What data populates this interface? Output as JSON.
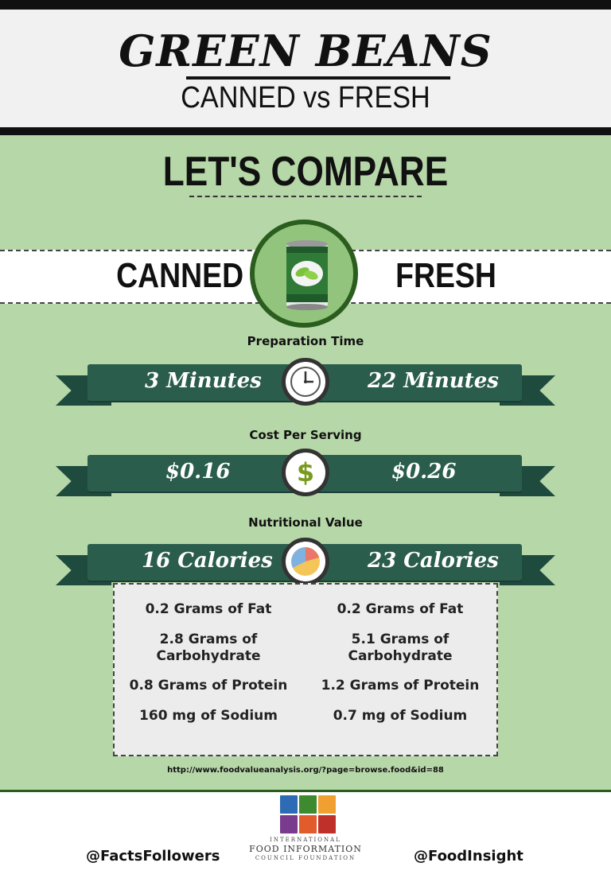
{
  "header": {
    "title": "GREEN BEANS",
    "subtitle": "CANNED vs FRESH"
  },
  "compare": {
    "title": "LET'S COMPARE",
    "left_label": "CANNED",
    "right_label": "FRESH"
  },
  "sections": {
    "prep": {
      "label": "Preparation Time",
      "canned": "3 Minutes",
      "fresh": "22 Minutes",
      "icon": "clock-icon"
    },
    "cost": {
      "label": "Cost Per Serving",
      "canned": "$0.16",
      "fresh": "$0.26",
      "icon": "dollar-icon"
    },
    "nutrition": {
      "label": "Nutritional Value",
      "canned": "16 Calories",
      "fresh": "23 Calories",
      "icon": "pie-chart-icon"
    }
  },
  "nutrition_details": {
    "canned": [
      "0.2 Grams of Fat",
      "2.8 Grams of Carbohydrate",
      "0.8 Grams of Protein",
      "160 mg of Sodium"
    ],
    "fresh": [
      "0.2 Grams of Fat",
      "5.1 Grams of Carbohydrate",
      "1.2 Grams of Protein",
      "0.7 mg of Sodium"
    ]
  },
  "source": "http://www.foodvalueanalysis.org/?page=browse.food&id=88",
  "footer": {
    "handle_left": "@FactsFollowers",
    "handle_right": "@FoodInsight",
    "logo_line1": "INTERNATIONAL",
    "logo_line2": "FOOD INFORMATION",
    "logo_line3": "COUNCIL FOUNDATION"
  },
  "colors": {
    "background": "#b6d7a8",
    "ribbon": "#2b5d4c",
    "accent_green": "#2b5d1e"
  }
}
